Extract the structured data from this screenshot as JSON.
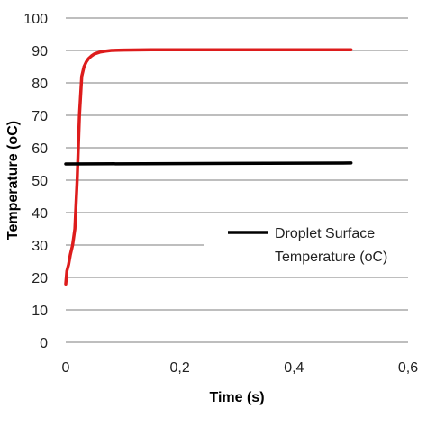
{
  "chart_data": {
    "type": "line",
    "title": "",
    "xlabel": "Time (s)",
    "ylabel": "Temperature (oC)",
    "xlim": [
      0,
      0.6
    ],
    "ylim": [
      0,
      100
    ],
    "x_ticks": [
      "0",
      "0,2",
      "0,4",
      "0,6"
    ],
    "y_ticks": [
      "0",
      "10",
      "20",
      "30",
      "40",
      "50",
      "60",
      "70",
      "80",
      "90",
      "100"
    ],
    "grid": "horizontal",
    "legend_position": "right",
    "series": [
      {
        "name": "",
        "color": "#dd1c1c",
        "x": [
          0.0,
          0.002,
          0.005,
          0.008,
          0.012,
          0.016,
          0.02,
          0.024,
          0.028,
          0.032,
          0.036,
          0.04,
          0.045,
          0.05,
          0.06,
          0.07,
          0.08,
          0.1,
          0.15,
          0.2,
          0.3,
          0.4,
          0.5
        ],
        "y": [
          18,
          22,
          24,
          27,
          30,
          35,
          50,
          70,
          82,
          85,
          86.5,
          87.5,
          88.3,
          88.9,
          89.5,
          89.8,
          90.0,
          90.1,
          90.2,
          90.2,
          90.2,
          90.2,
          90.2
        ]
      },
      {
        "name": "Droplet Surface Temperature (oC)",
        "color": "#000000",
        "x": [
          0.0,
          0.5
        ],
        "y": [
          55.0,
          55.3
        ]
      }
    ],
    "legend": {
      "line1": "Droplet Surface",
      "line2": "Temperature (oC)"
    }
  }
}
